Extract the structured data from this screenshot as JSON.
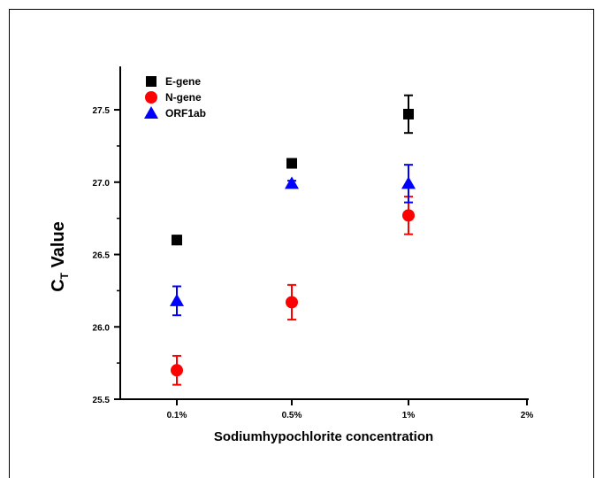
{
  "chart_data": {
    "type": "scatter",
    "categories": [
      "0.1%",
      "0.5%",
      "1%",
      "2%"
    ],
    "ylabel_main": "C",
    "ylabel_sub": "T",
    "ylabel_rest": " Value",
    "xlabel": "Sodiumhypochlorite concentration",
    "ylim": [
      25.5,
      27.8
    ],
    "yticks": [
      25.5,
      26.0,
      26.5,
      27.0,
      27.5
    ],
    "ytick_labels": [
      "25.5",
      "26.0",
      "26.5",
      "27.0",
      "27.5"
    ],
    "grid": false,
    "legend_position": "top-left",
    "series": [
      {
        "name": "E-gene",
        "color": "#000000",
        "marker": "square",
        "points": [
          {
            "category": "0.1%",
            "y": 26.6,
            "err": 0.03
          },
          {
            "category": "0.5%",
            "y": 27.13,
            "err": 0.02
          },
          {
            "category": "1%",
            "y": 27.47,
            "err": 0.13
          }
        ]
      },
      {
        "name": "N-gene",
        "color": "#ff0000",
        "marker": "circle",
        "points": [
          {
            "category": "0.1%",
            "y": 25.7,
            "err": 0.1
          },
          {
            "category": "0.5%",
            "y": 26.17,
            "err": 0.12
          },
          {
            "category": "1%",
            "y": 26.77,
            "err": 0.13
          }
        ]
      },
      {
        "name": "ORF1ab",
        "color": "#0000ff",
        "marker": "triangle",
        "points": [
          {
            "category": "0.1%",
            "y": 26.18,
            "err": 0.1
          },
          {
            "category": "0.5%",
            "y": 26.99,
            "err": 0.02
          },
          {
            "category": "1%",
            "y": 26.99,
            "err": 0.13
          }
        ]
      }
    ]
  }
}
